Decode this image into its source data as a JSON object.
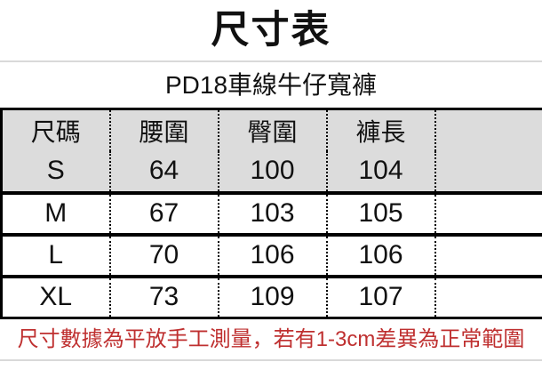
{
  "title": "尺寸表",
  "subtitle": "PD18車線牛仔寬褲",
  "table": {
    "headers": [
      "尺碼",
      "腰圍",
      "臀圍",
      "褲長",
      ""
    ],
    "rows": [
      [
        "S",
        "64",
        "100",
        "104",
        ""
      ],
      [
        "M",
        "67",
        "103",
        "105",
        ""
      ],
      [
        "L",
        "70",
        "106",
        "106",
        ""
      ],
      [
        "XL",
        "73",
        "109",
        "107",
        ""
      ]
    ]
  },
  "note": "尺寸數據為平放手工測量，若有1-3cm差異為正常範圍",
  "colors": {
    "highlight_row_bg": "#dcdcdc",
    "table_border": "#000000",
    "note_red": "#bf3030",
    "divider_gray": "#d9d9d9",
    "background": "#ffffff"
  },
  "chart_data": {
    "type": "table",
    "title": "尺寸表",
    "subtitle": "PD18車線牛仔寬褲",
    "columns": [
      "尺碼",
      "腰圍",
      "臀圍",
      "褲長"
    ],
    "rows": [
      {
        "尺碼": "S",
        "腰圍": 64,
        "臀圍": 100,
        "褲長": 104
      },
      {
        "尺碼": "M",
        "腰圍": 67,
        "臀圍": 103,
        "褲長": 105
      },
      {
        "尺碼": "L",
        "腰圍": 70,
        "臀圍": 106,
        "褲長": 106
      },
      {
        "尺碼": "XL",
        "腰圍": 73,
        "臀圍": 109,
        "褲長": 107
      }
    ],
    "note": "尺寸數據為平放手工測量，若有1-3cm差異為正常範圍",
    "layout": {
      "grid": "solid horizontal rules, dotted vertical rules",
      "highlighted_rows": [
        "header",
        "S"
      ]
    }
  }
}
